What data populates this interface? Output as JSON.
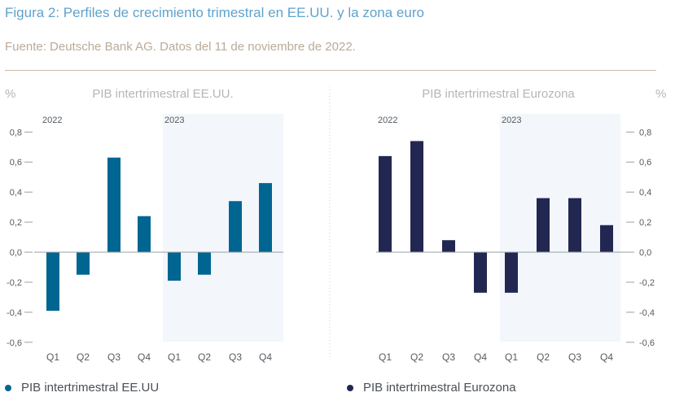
{
  "header": {
    "title": "Figura 2: Perfiles de crecimiento trimestral en EE.UU. y la zona euro",
    "source": "Fuente: Deutsche Bank AG. Datos del 11 de noviembre de 2022."
  },
  "colors": {
    "us": "#006591",
    "euro": "#222752",
    "shade": "#f3f6fb",
    "title": "#5fa3cc",
    "source": "#b9ab98",
    "axis": "#9aa0a6",
    "tick_text": "#555a60"
  },
  "legend": [
    {
      "label": "PIB intertrimestral EE.UU",
      "color": "#006591"
    },
    {
      "label": "PIB intertrimestral Eurozona",
      "color": "#222752"
    }
  ],
  "chart_data": [
    {
      "type": "bar",
      "title": "PIB intertrimestral EE.UU.",
      "ylabel": "%",
      "yaxis_side": "left",
      "ylim": [
        -0.6,
        0.8
      ],
      "yticks": [
        0.8,
        0.6,
        0.4,
        0.2,
        0.0,
        -0.2,
        -0.4,
        -0.6
      ],
      "ytick_labels": [
        "0,8",
        "0,6",
        "0,4",
        "0,2",
        "0,0",
        "-0,2",
        "-0,4",
        "-0,6"
      ],
      "categories": [
        "Q1",
        "Q2",
        "Q3",
        "Q4",
        "Q1",
        "Q2",
        "Q3",
        "Q4"
      ],
      "year_labels": [
        "2022",
        "2023"
      ],
      "shaded_from_index": 4,
      "series": [
        {
          "name": "PIB intertrimestral EE.UU",
          "color": "#006591",
          "values": [
            -0.39,
            -0.15,
            0.63,
            0.24,
            -0.19,
            -0.15,
            0.34,
            0.46
          ]
        }
      ],
      "grid": false
    },
    {
      "type": "bar",
      "title": "PIB intertrimestral Eurozona",
      "ylabel": "%",
      "yaxis_side": "right",
      "ylim": [
        -0.6,
        0.8
      ],
      "yticks": [
        0.8,
        0.6,
        0.4,
        0.2,
        0.0,
        -0.2,
        -0.4,
        -0.6
      ],
      "ytick_labels": [
        "0,8",
        "0,6",
        "0,4",
        "0,2",
        "0,0",
        "-0,2",
        "-0,4",
        "-0,6"
      ],
      "categories": [
        "Q1",
        "Q2",
        "Q3",
        "Q4",
        "Q1",
        "Q2",
        "Q3",
        "Q4"
      ],
      "year_labels": [
        "2022",
        "2023"
      ],
      "shaded_from_index": 4,
      "series": [
        {
          "name": "PIB intertrimestral Eurozona",
          "color": "#222752",
          "values": [
            0.64,
            0.74,
            0.08,
            -0.27,
            -0.27,
            0.36,
            0.36,
            0.18
          ]
        }
      ],
      "grid": false
    }
  ]
}
